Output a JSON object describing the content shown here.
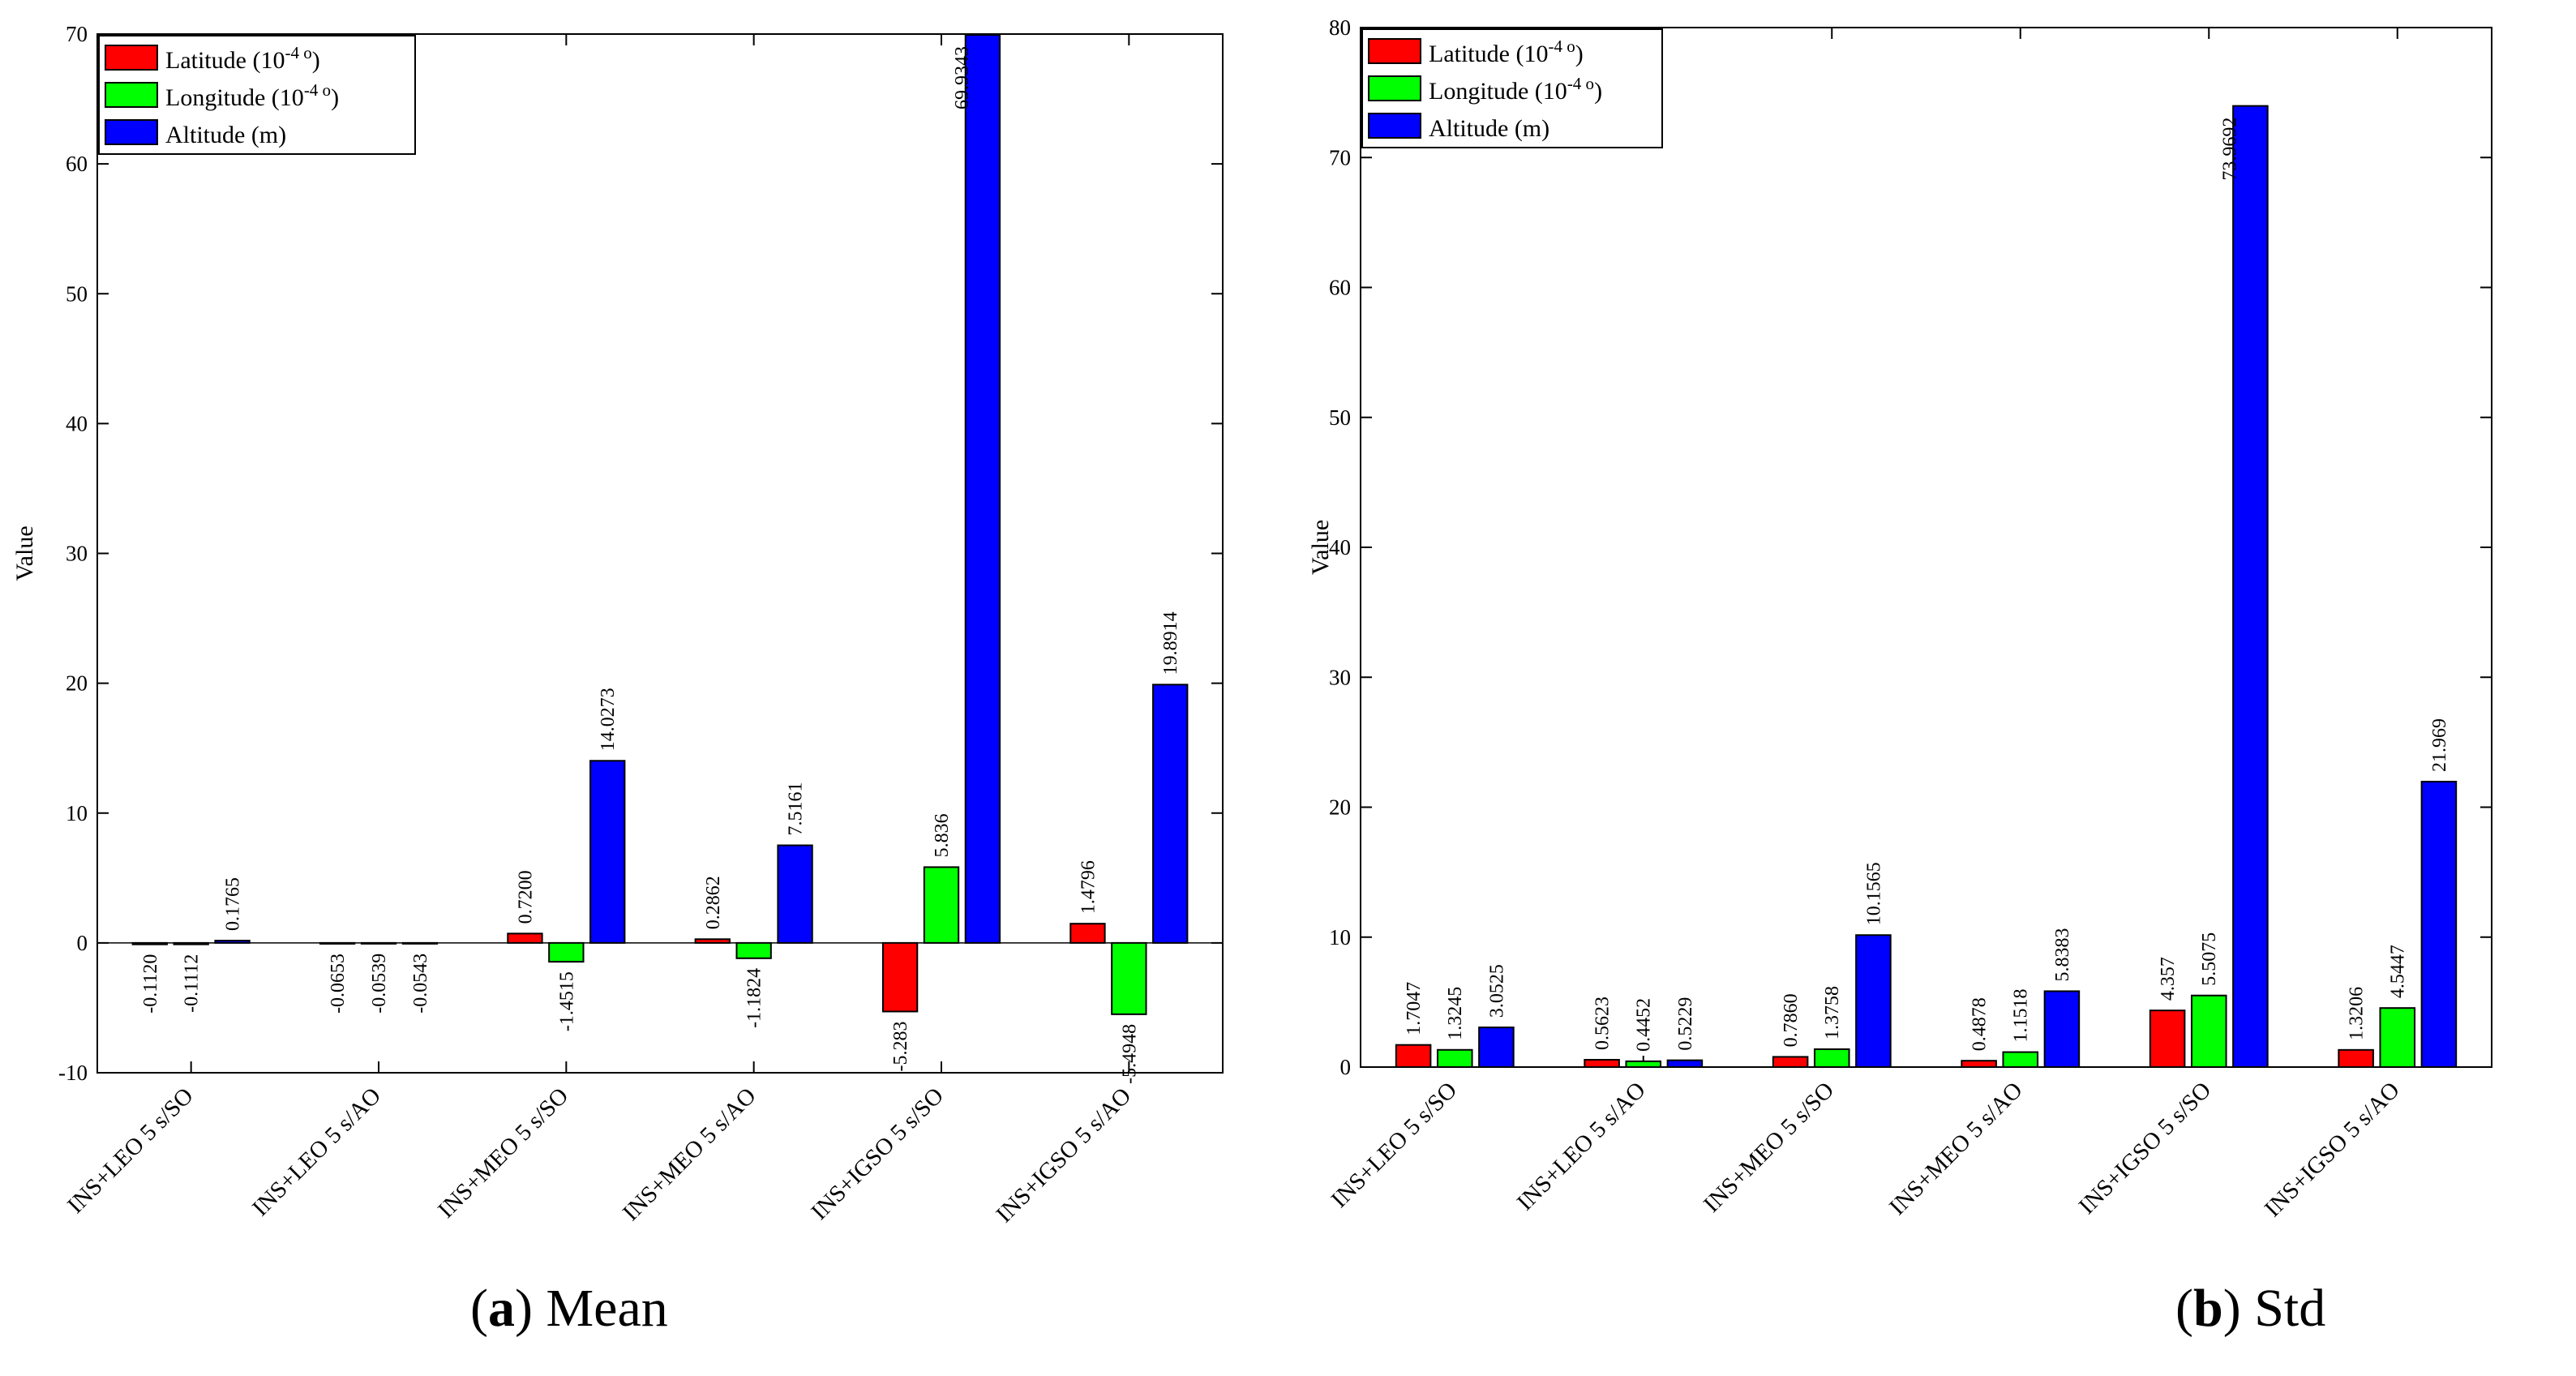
{
  "chart_data": [
    {
      "type": "bar",
      "panel_tag": "a",
      "caption": "Mean",
      "ylabel": "Value",
      "ylim": [
        -10,
        70
      ],
      "yticks": [
        -10,
        0,
        10,
        20,
        30,
        40,
        50,
        60,
        70
      ],
      "categories": [
        "INS+LEO 5 s/SO",
        "INS+LEO 5 s/AO",
        "INS+MEO 5 s/SO",
        "INS+MEO 5 s/AO",
        "INS+IGSO 5 s/SO",
        "INS+IGSO 5 s/AO"
      ],
      "legend": {
        "position": "top-left",
        "entries": [
          {
            "base": "Latitude (10",
            "sup": "-4 o",
            "close": ")"
          },
          {
            "base": "Longitude (10",
            "sup": "-4 o",
            "close": ")"
          },
          {
            "base": "Altitude (m)",
            "sup": "",
            "close": ""
          }
        ]
      },
      "series": [
        {
          "name": "Latitude",
          "color": "#ff0000",
          "values": [
            -0.112,
            -0.0653,
            0.72,
            0.2862,
            -5.283,
            1.4796
          ],
          "labels": [
            "-0.1120",
            "-0.0653",
            "0.7200",
            "0.2862",
            "-5.283",
            "1.4796"
          ]
        },
        {
          "name": "Longitude",
          "color": "#00ff00",
          "values": [
            -0.1112,
            -0.0539,
            -1.4515,
            -1.1824,
            5.836,
            -5.4948
          ],
          "labels": [
            "-0.1112",
            "-0.0539",
            "-1.4515",
            "-1.1824",
            "5.836",
            "-5.4948"
          ]
        },
        {
          "name": "Altitude",
          "color": "#0000ff",
          "values": [
            0.1765,
            -0.0543,
            14.0273,
            7.5161,
            69.9343,
            19.8914
          ],
          "labels": [
            "0.1765",
            "-0.0543",
            "14.0273",
            "7.5161",
            "69.9343",
            "19.8914"
          ]
        }
      ]
    },
    {
      "type": "bar",
      "panel_tag": "b",
      "caption": "Std",
      "ylabel": "Value",
      "ylim": [
        0,
        80
      ],
      "yticks": [
        0,
        10,
        20,
        30,
        40,
        50,
        60,
        70,
        80
      ],
      "categories": [
        "INS+LEO 5 s/SO",
        "INS+LEO 5 s/AO",
        "INS+MEO 5 s/SO",
        "INS+MEO 5 s/AO",
        "INS+IGSO 5 s/SO",
        "INS+IGSO 5 s/AO"
      ],
      "legend": {
        "position": "top-left",
        "entries": [
          {
            "base": "Latitude (10",
            "sup": "-4 o",
            "close": ")"
          },
          {
            "base": "Longitude (10",
            "sup": "-4 o",
            "close": ")"
          },
          {
            "base": "Altitude (m)",
            "sup": "",
            "close": ""
          }
        ]
      },
      "series": [
        {
          "name": "Latitude",
          "color": "#ff0000",
          "values": [
            1.7047,
            0.5623,
            0.786,
            0.4878,
            4.357,
            1.3206
          ],
          "labels": [
            "1.7047",
            "0.5623",
            "0.7860",
            "0.4878",
            "4.357",
            "1.3206"
          ]
        },
        {
          "name": "Longitude",
          "color": "#00ff00",
          "values": [
            1.3245,
            0.4452,
            1.3758,
            1.1518,
            5.5075,
            4.5447
          ],
          "labels": [
            "1.3245",
            "0.4452",
            "1.3758",
            "1.1518",
            "5.5075",
            "4.5447"
          ]
        },
        {
          "name": "Altitude",
          "color": "#0000ff",
          "values": [
            3.0525,
            0.5229,
            10.1565,
            5.8383,
            73.9692,
            21.969
          ],
          "labels": [
            "3.0525",
            "0.5229",
            "10.1565",
            "5.8383",
            "73.9692",
            "21.969"
          ]
        }
      ]
    }
  ]
}
